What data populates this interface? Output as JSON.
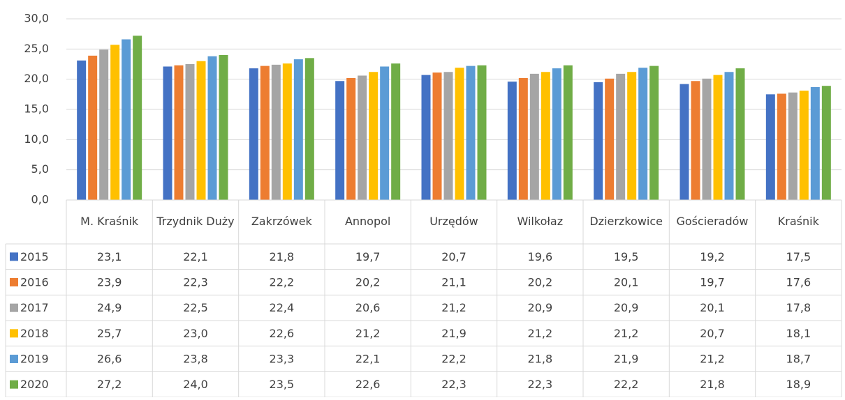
{
  "chart_data": {
    "type": "bar",
    "categories": [
      "M. Kraśnik",
      "Trzydnik Duży",
      "Zakrzówek",
      "Annopol",
      "Urzędów",
      "Wilkołaz",
      "Dzierzkowice",
      "Gościeradów",
      "Kraśnik"
    ],
    "series": [
      {
        "name": "2015",
        "color": "#4472c4",
        "values": [
          23.1,
          22.1,
          21.8,
          19.7,
          20.7,
          19.6,
          19.5,
          19.2,
          17.5
        ],
        "value_labels": [
          "23,1",
          "22,1",
          "21,8",
          "19,7",
          "20,7",
          "19,6",
          "19,5",
          "19,2",
          "17,5"
        ]
      },
      {
        "name": "2016",
        "color": "#ed7d31",
        "values": [
          23.9,
          22.3,
          22.2,
          20.2,
          21.1,
          20.2,
          20.1,
          19.7,
          17.6
        ],
        "value_labels": [
          "23,9",
          "22,3",
          "22,2",
          "20,2",
          "21,1",
          "20,2",
          "20,1",
          "19,7",
          "17,6"
        ]
      },
      {
        "name": "2017",
        "color": "#a5a5a5",
        "values": [
          24.9,
          22.5,
          22.4,
          20.6,
          21.2,
          20.9,
          20.9,
          20.1,
          17.8
        ],
        "value_labels": [
          "24,9",
          "22,5",
          "22,4",
          "20,6",
          "21,2",
          "20,9",
          "20,9",
          "20,1",
          "17,8"
        ]
      },
      {
        "name": "2018",
        "color": "#ffc000",
        "values": [
          25.7,
          23.0,
          22.6,
          21.2,
          21.9,
          21.2,
          21.2,
          20.7,
          18.1
        ],
        "value_labels": [
          "25,7",
          "23,0",
          "22,6",
          "21,2",
          "21,9",
          "21,2",
          "21,2",
          "20,7",
          "18,1"
        ]
      },
      {
        "name": "2019",
        "color": "#5b9bd5",
        "values": [
          26.6,
          23.8,
          23.3,
          22.1,
          22.2,
          21.8,
          21.9,
          21.2,
          18.7
        ],
        "value_labels": [
          "26,6",
          "23,8",
          "23,3",
          "22,1",
          "22,2",
          "21,8",
          "21,9",
          "21,2",
          "18,7"
        ]
      },
      {
        "name": "2020",
        "color": "#70ad47",
        "values": [
          27.2,
          24.0,
          23.5,
          22.6,
          22.3,
          22.3,
          22.2,
          21.8,
          18.9
        ],
        "value_labels": [
          "27,2",
          "24,0",
          "23,5",
          "22,6",
          "22,3",
          "22,3",
          "22,2",
          "21,8",
          "18,9"
        ]
      }
    ],
    "ylim": [
      0,
      30
    ],
    "yticks": [
      {
        "value": 0,
        "label": "0,0"
      },
      {
        "value": 5,
        "label": "5,0"
      },
      {
        "value": 10,
        "label": "10,0"
      },
      {
        "value": 15,
        "label": "15,0"
      },
      {
        "value": 20,
        "label": "20,0"
      },
      {
        "value": 25,
        "label": "25,0"
      },
      {
        "value": 30,
        "label": "30,0"
      }
    ],
    "grid": true
  }
}
